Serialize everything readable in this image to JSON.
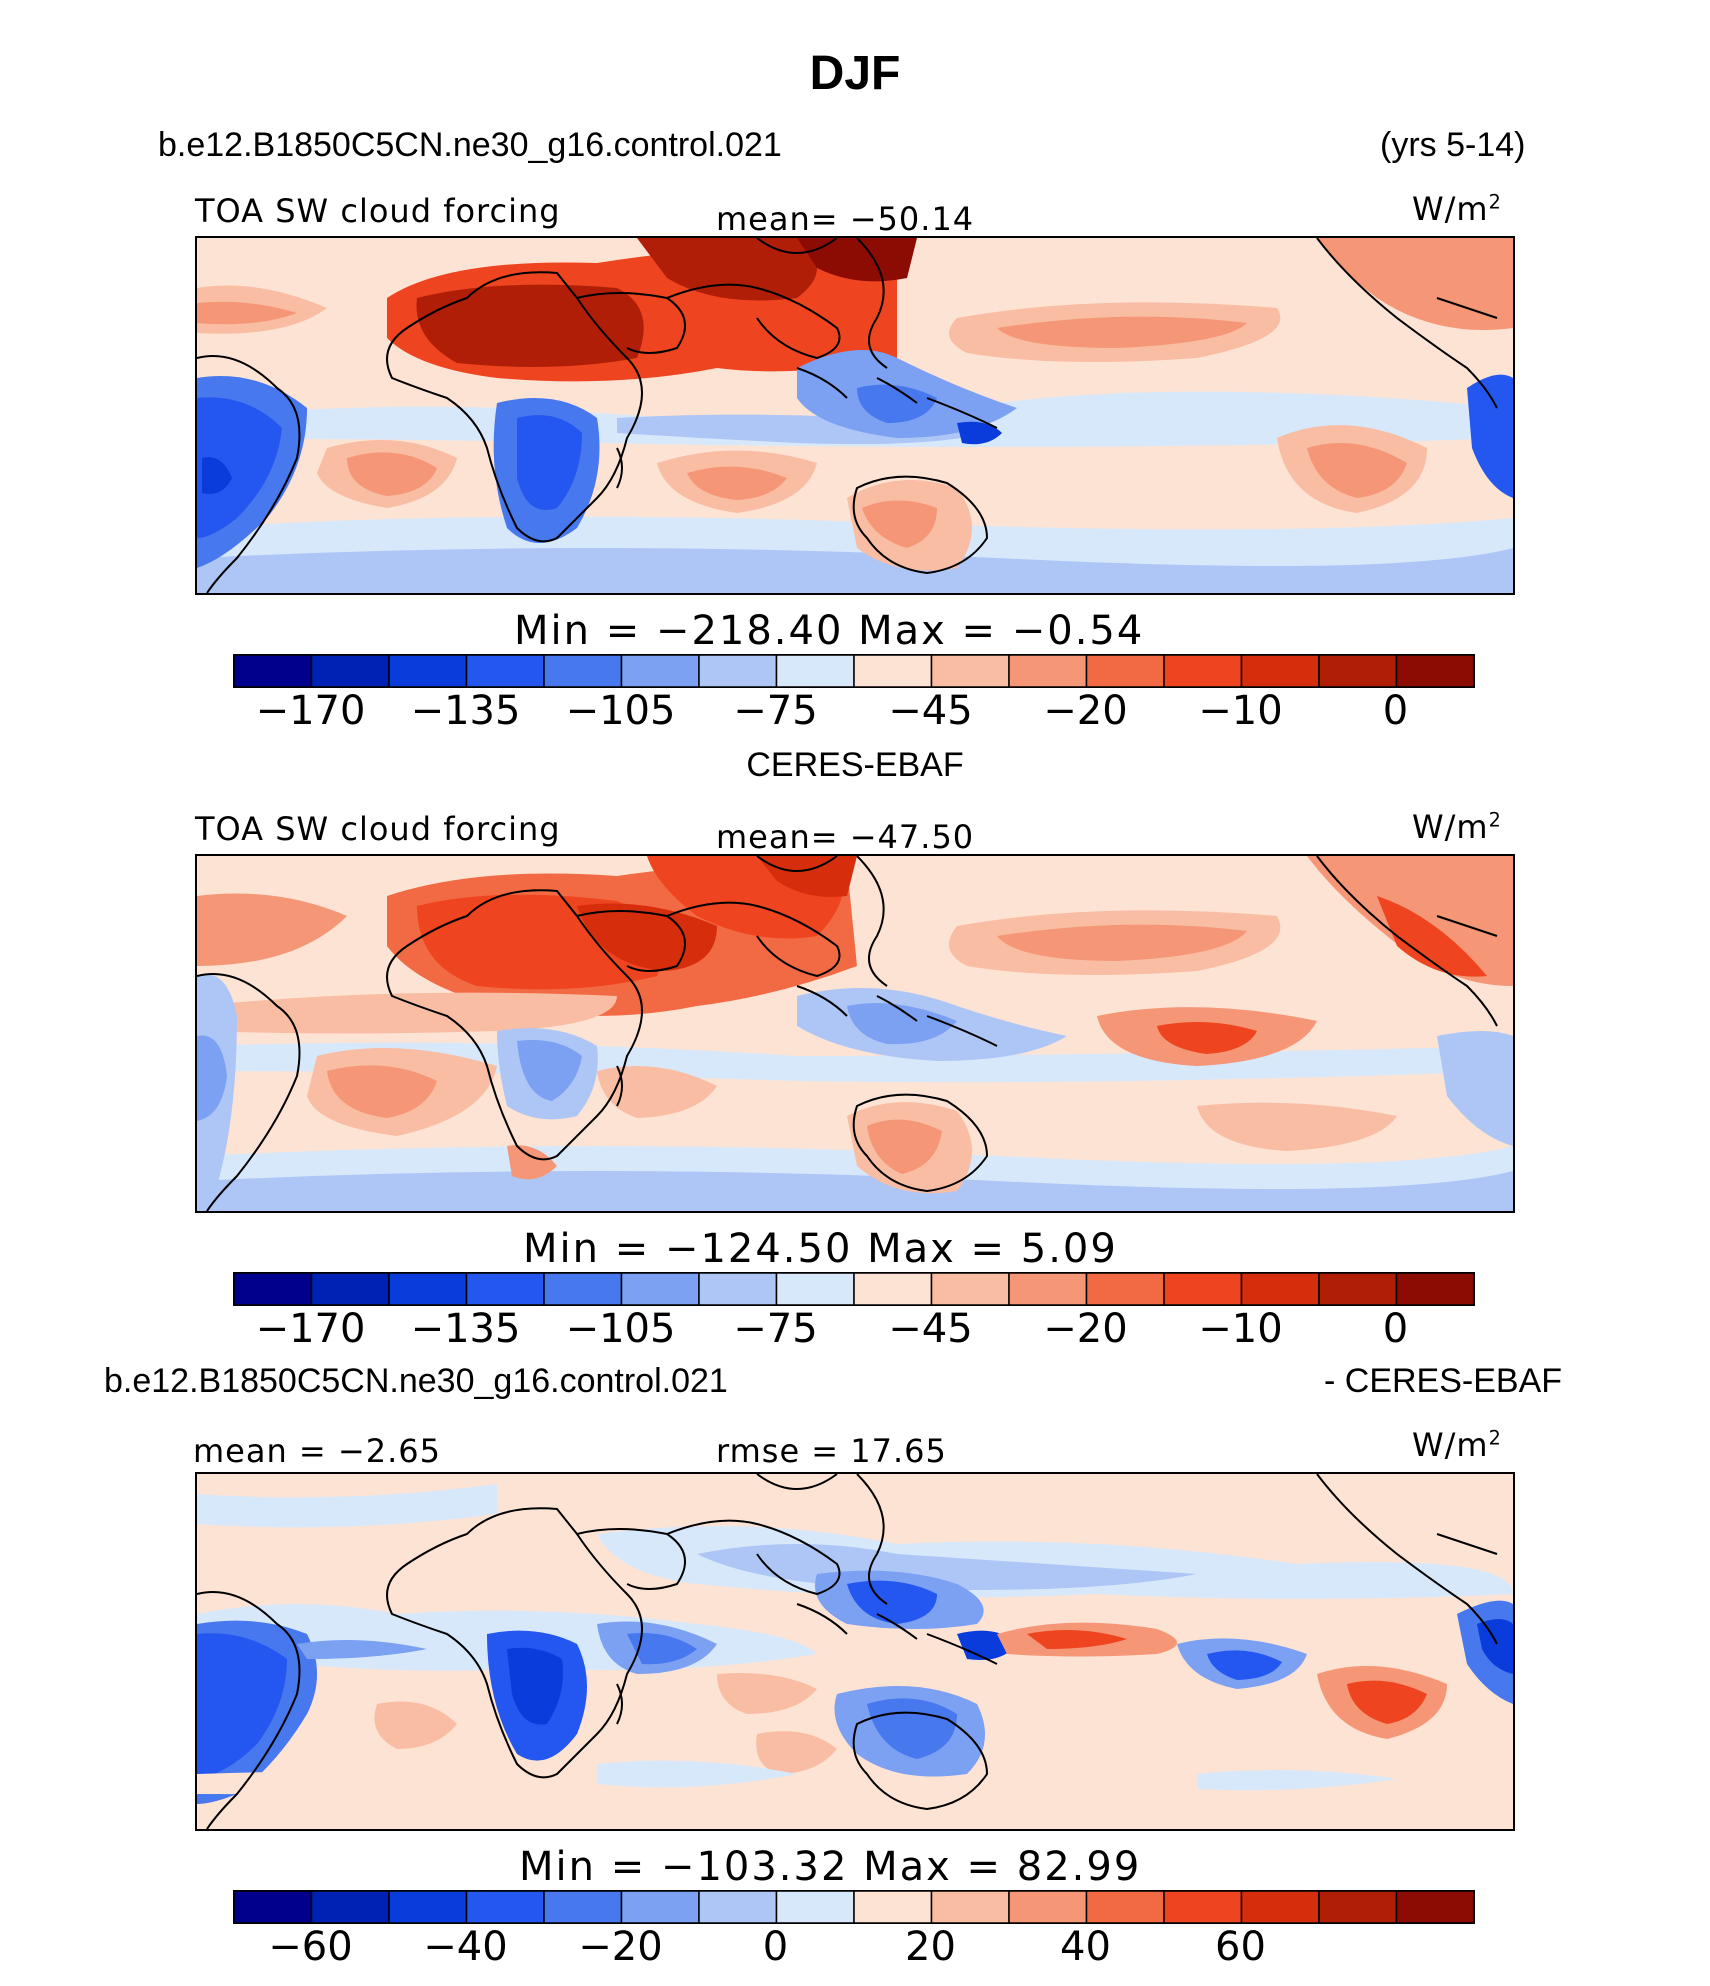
{
  "page": {
    "title": "DJF",
    "case_name": "b.e12.B1850C5CN.ne30_g16.control.021",
    "years": "(yrs 5-14)",
    "diff_case_name": "b.e12.B1850C5CN.ne30_g16.control.021",
    "diff_suffix": "- CERES-EBAF"
  },
  "panels": [
    {
      "variable": "TOA SW cloud forcing",
      "mean_label": "mean= −50.14",
      "units_base": "W/m",
      "units_exp": "2",
      "minmax_label": "Min  =  −218.40  Max  =    −0.54",
      "colorbar_ticks": [
        "−170",
        "−135",
        "−105",
        "−75",
        "−45",
        "−20",
        "−10",
        "0"
      ]
    },
    {
      "subtitle": "CERES-EBAF",
      "variable": "TOA SW cloud forcing",
      "mean_label": "mean= −47.50",
      "units_base": "W/m",
      "units_exp": "2",
      "minmax_label": "Min  =  −124.50  Max  =     5.09",
      "colorbar_ticks": [
        "−170",
        "−135",
        "−105",
        "−75",
        "−45",
        "−20",
        "−10",
        "0"
      ]
    },
    {
      "mean_label": "mean  =   −2.65",
      "rmse_label": "rmse  =   17.65",
      "units_base": "W/m",
      "units_exp": "2",
      "minmax_label": "Min  =  −103.32  Max  =   82.99",
      "colorbar_ticks": [
        "−60",
        "−40",
        "−20",
        "0",
        "20",
        "40",
        "60"
      ]
    }
  ],
  "chart_data": [
    {
      "type": "heatmap",
      "title": "TOA SW cloud forcing",
      "mean": -50.14,
      "min": -218.4,
      "max": -0.54,
      "levels": [
        -170,
        -135,
        -105,
        -75,
        -45,
        -20,
        -10,
        0
      ],
      "colors": [
        "#00008c",
        "#0022b4",
        "#0a3cdc",
        "#2456f0",
        "#4878ee",
        "#7ca0f2",
        "#aec6f6",
        "#d8e8fb",
        "#fde3d4",
        "#f9bda3",
        "#f59676",
        "#f26a43",
        "#ee4420",
        "#d62e0c",
        "#b01e08",
        "#8c0c04"
      ]
    },
    {
      "type": "heatmap",
      "title": "TOA SW cloud forcing",
      "mean": -47.5,
      "min": -124.5,
      "max": 5.09,
      "levels": [
        -170,
        -135,
        -105,
        -75,
        -45,
        -20,
        -10,
        0
      ],
      "colors": [
        "#00008c",
        "#0022b4",
        "#0a3cdc",
        "#2456f0",
        "#4878ee",
        "#7ca0f2",
        "#aec6f6",
        "#d8e8fb",
        "#fde3d4",
        "#f9bda3",
        "#f59676",
        "#f26a43",
        "#ee4420",
        "#d62e0c",
        "#b01e08",
        "#8c0c04"
      ]
    },
    {
      "type": "heatmap",
      "mean": -2.65,
      "rmse": 17.65,
      "min": -103.32,
      "max": 82.99,
      "levels": [
        -60,
        -40,
        -20,
        0,
        20,
        40,
        60
      ],
      "colors": [
        "#00008c",
        "#0022b4",
        "#0a3cdc",
        "#2456f0",
        "#4878ee",
        "#7ca0f2",
        "#aec6f6",
        "#d8e8fb",
        "#fde3d4",
        "#f9bda3",
        "#f59676",
        "#f26a43",
        "#ee4420",
        "#d62e0c",
        "#b01e08",
        "#8c0c04"
      ]
    }
  ]
}
